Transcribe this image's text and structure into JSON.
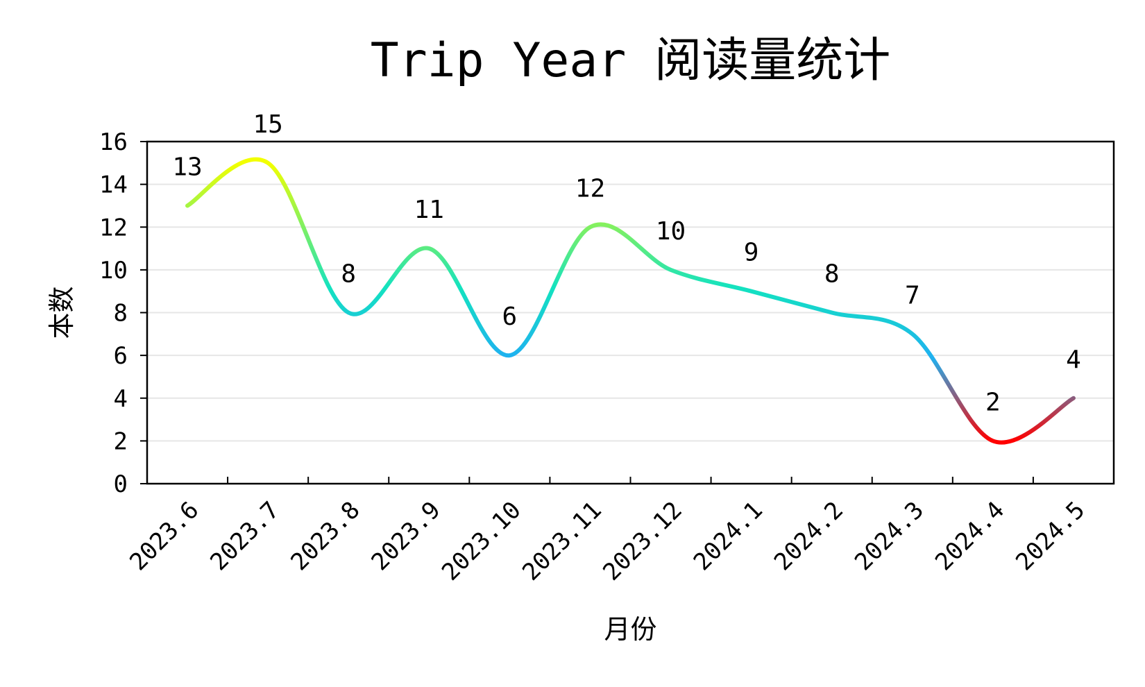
{
  "chart_data": {
    "type": "line",
    "title": "Trip Year 阅读量统计",
    "xlabel": "月份",
    "ylabel": "本数",
    "categories": [
      "2023.6",
      "2023.7",
      "2023.8",
      "2023.9",
      "2023.10",
      "2023.11",
      "2023.12",
      "2024.1",
      "2024.2",
      "2024.3",
      "2024.4",
      "2024.5"
    ],
    "values": [
      13,
      15,
      8,
      11,
      6,
      12,
      10,
      9,
      8,
      7,
      2,
      4
    ],
    "ylim": [
      0,
      16
    ],
    "yticks": [
      0,
      2,
      4,
      6,
      8,
      10,
      12,
      14,
      16
    ],
    "grid": "horizontal",
    "line_gradient": {
      "low": "#ff0000",
      "mid_low": "#1fb1f0",
      "mid": "#13e2c0",
      "high": "#f2ff00"
    }
  }
}
